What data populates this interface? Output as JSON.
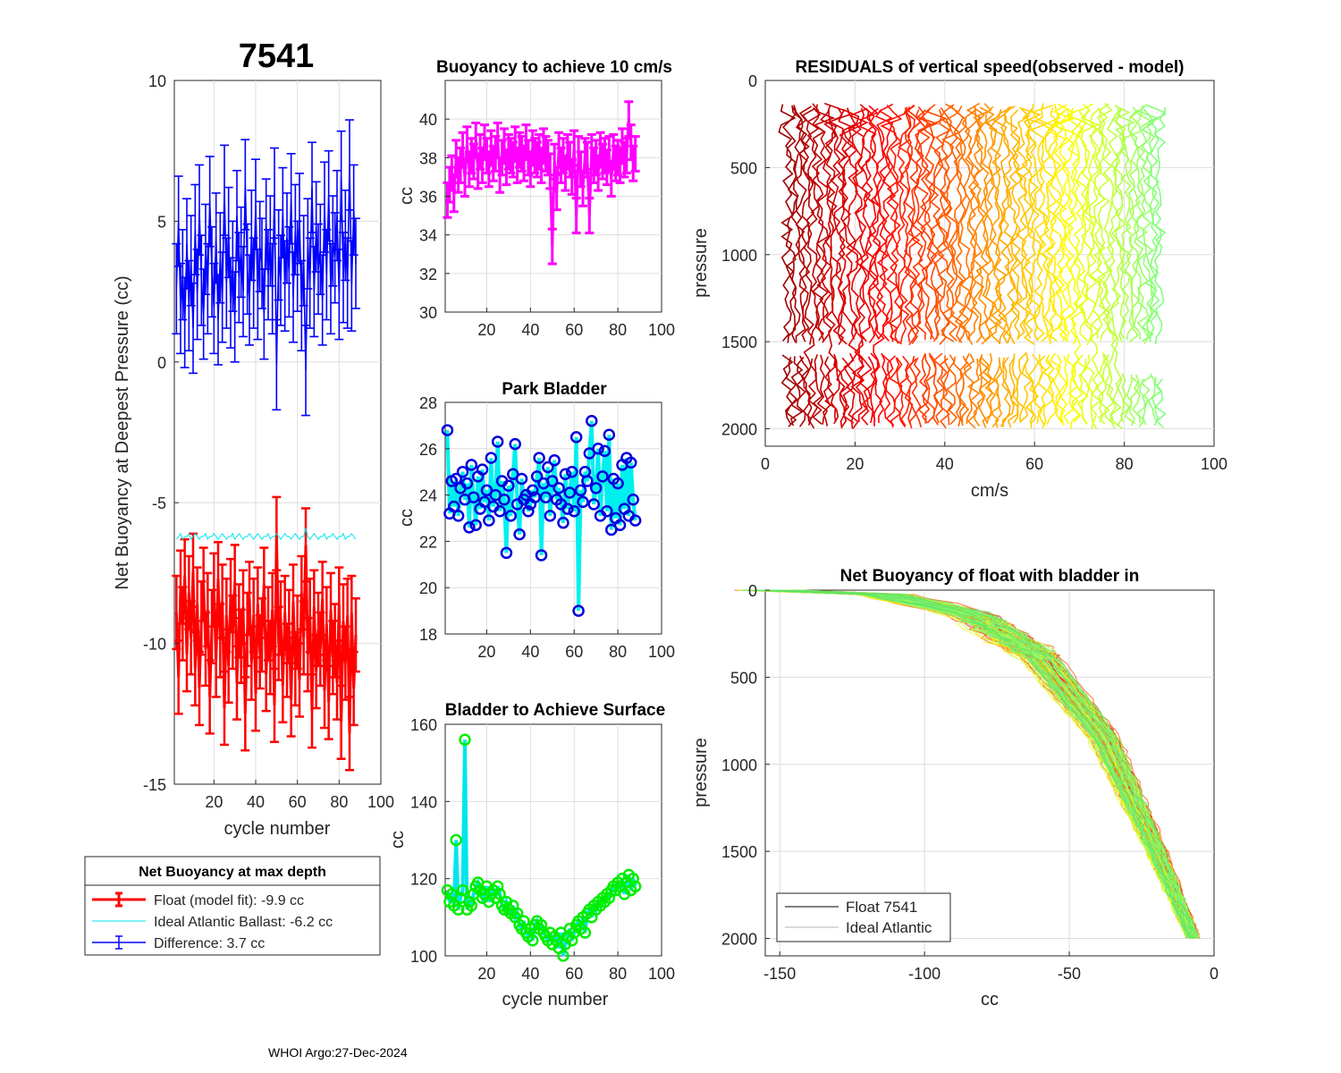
{
  "figure": {
    "main_title": "7541",
    "footer": "WHOI Argo:27-Dec-2024"
  },
  "colors": {
    "float": "#ff0000",
    "ideal": "#00e5ee",
    "difference": "#0000ff",
    "buoyancy10": "#ff00ff",
    "park_marker": "#0000dd",
    "park_line": "#00f0f0",
    "surface_marker": "#00ee00",
    "surface_line": "#00e5ee"
  },
  "legend": {
    "title": "Net Buoyancy at max depth",
    "entries": [
      {
        "label": "Float (model fit):  -9.9 cc",
        "color": "#ff0000"
      },
      {
        "label": "Ideal Atlantic Ballast:  -6.2 cc",
        "color": "#00e5ee"
      },
      {
        "label": "Difference:   3.7 cc",
        "color": "#0000ff"
      }
    ]
  },
  "legend2": {
    "entries": [
      {
        "label": "Float 7541",
        "color": "#000000"
      },
      {
        "label": "Ideal Atlantic",
        "color": "#b0b0b0"
      }
    ]
  },
  "chart_data": [
    {
      "id": "net-buoyancy",
      "type": "line",
      "title": "7541",
      "xlabel": "cycle number",
      "ylabel": "Net Buoyancy at Deepest Pressure (cc)",
      "xlim": [
        1,
        100
      ],
      "ylim": [
        -15,
        10
      ],
      "xticks": [
        20,
        40,
        60,
        80,
        100
      ],
      "yticks": [
        -15,
        -10,
        -5,
        0,
        5,
        10
      ],
      "x": [
        2,
        3,
        4,
        5,
        6,
        7,
        8,
        9,
        10,
        11,
        12,
        13,
        14,
        15,
        16,
        17,
        18,
        19,
        20,
        21,
        22,
        23,
        24,
        25,
        26,
        27,
        28,
        29,
        30,
        31,
        32,
        33,
        34,
        35,
        36,
        37,
        38,
        39,
        40,
        41,
        42,
        43,
        44,
        45,
        46,
        47,
        48,
        49,
        50,
        51,
        52,
        53,
        54,
        55,
        56,
        57,
        58,
        59,
        60,
        61,
        62,
        63,
        64,
        65,
        66,
        67,
        68,
        69,
        70,
        71,
        72,
        73,
        74,
        75,
        76,
        77,
        78,
        79,
        80,
        81,
        82,
        83,
        84,
        85,
        86,
        87,
        88
      ],
      "series": [
        {
          "name": "Float (model fit)",
          "color": "#ff0000",
          "values": [
            -8.9,
            -11.2,
            -8.0,
            -9.3,
            -7.6,
            -10.4,
            -8.2,
            -9.8,
            -7.4,
            -10.9,
            -8.6,
            -11.6,
            -9.1,
            -7.9,
            -10.2,
            -8.8,
            -11.9,
            -9.4,
            -8.1,
            -10.6,
            -7.7,
            -9.9,
            -8.5,
            -12.3,
            -9.0,
            -10.8,
            -8.3,
            -9.6,
            -7.8,
            -11.4,
            -9.2,
            -10.1,
            -8.7,
            -12.5,
            -9.5,
            -8.4,
            -10.7,
            -9.0,
            -11.8,
            -8.6,
            -10.3,
            -9.7,
            -7.9,
            -11.1,
            -9.3,
            -10.5,
            -8.8,
            -12.2,
            -6.1,
            -10.0,
            -9.1,
            -11.5,
            -8.9,
            -10.6,
            -9.4,
            -12.0,
            -8.5,
            -10.9,
            -9.6,
            -11.3,
            -8.2,
            -9.8,
            -6.5,
            -10.4,
            -9.0,
            -12.4,
            -8.7,
            -11.0,
            -9.5,
            -10.2,
            -8.4,
            -11.7,
            -9.3,
            -12.1,
            -8.8,
            -10.5,
            -9.9,
            -11.4,
            -8.6,
            -12.8,
            -9.2,
            -10.7,
            -9.0,
            -13.2,
            -8.9,
            -11.6,
            -9.7
          ],
          "errors": 1.3
        },
        {
          "name": "Ideal Atlantic Ballast",
          "color": "#00e5ee",
          "values": [
            -6.3,
            -6.2,
            -6.1,
            -6.3,
            -6.2,
            -6.2,
            -6.1,
            -6.3,
            -6.2,
            -6.1,
            -6.2,
            -6.3,
            -6.2,
            -6.2,
            -6.1,
            -6.3,
            -6.2,
            -6.2,
            -6.1,
            -6.2,
            -6.3,
            -6.2,
            -6.1,
            -6.2,
            -6.3,
            -6.2,
            -6.2,
            -6.1,
            -6.3,
            -6.2,
            -6.1,
            -6.2,
            -6.3,
            -6.2,
            -6.2,
            -6.1,
            -6.2,
            -6.3,
            -6.2,
            -6.1,
            -6.2,
            -6.3,
            -6.2,
            -6.2,
            -6.1,
            -6.3,
            -6.2,
            -6.2,
            -6.1,
            -6.2,
            -6.3,
            -6.2,
            -6.1,
            -6.2,
            -6.2,
            -6.3,
            -6.2,
            -6.1,
            -6.2,
            -6.3,
            -6.2,
            -6.2,
            -5.9,
            -6.2,
            -6.3,
            -6.2,
            -6.1,
            -6.2,
            -6.3,
            -6.2,
            -6.2,
            -6.1,
            -6.3,
            -6.2,
            -6.2,
            -6.1,
            -6.2,
            -6.3,
            -6.2,
            -6.2,
            -6.1,
            -6.3,
            -6.2,
            -6.2,
            -6.1,
            -6.2,
            -6.3
          ]
        },
        {
          "name": "Difference",
          "color": "#0000ff",
          "values": [
            2.6,
            5.0,
            1.9,
            3.1,
            1.4,
            4.2,
            2.0,
            3.6,
            1.2,
            4.7,
            2.4,
            5.4,
            2.9,
            1.7,
            4.0,
            2.6,
            5.7,
            3.2,
            1.9,
            4.4,
            1.5,
            3.7,
            2.3,
            6.1,
            2.8,
            4.6,
            2.1,
            3.4,
            1.6,
            5.2,
            3.0,
            3.9,
            2.5,
            6.3,
            3.3,
            2.2,
            4.5,
            2.8,
            5.6,
            2.4,
            4.1,
            3.5,
            1.7,
            4.9,
            3.1,
            4.3,
            2.6,
            6.0,
            -0.1,
            3.8,
            2.9,
            5.3,
            2.7,
            4.4,
            3.2,
            5.8,
            2.3,
            4.7,
            3.4,
            5.1,
            2.0,
            3.6,
            -0.3,
            4.2,
            2.8,
            6.2,
            2.5,
            4.8,
            3.3,
            4.0,
            2.2,
            5.5,
            3.1,
            5.9,
            2.6,
            4.3,
            3.7,
            5.2,
            2.4,
            6.6,
            3.0,
            4.5,
            2.8,
            7.0,
            2.7,
            5.4,
            3.5
          ],
          "errors": 1.6
        }
      ]
    },
    {
      "id": "buoyancy-10cms",
      "type": "line",
      "title": "Buoyancy to achieve 10 cm/s",
      "xlabel": "",
      "ylabel": "cc",
      "xlim": [
        1,
        100
      ],
      "ylim": [
        30,
        42
      ],
      "xticks": [
        20,
        40,
        60,
        80,
        100
      ],
      "yticks": [
        30,
        32,
        34,
        36,
        38,
        40
      ],
      "x": [
        2,
        3,
        4,
        5,
        6,
        7,
        8,
        9,
        10,
        11,
        12,
        13,
        14,
        15,
        16,
        17,
        18,
        19,
        20,
        21,
        22,
        23,
        24,
        25,
        26,
        27,
        28,
        29,
        30,
        31,
        32,
        33,
        34,
        35,
        36,
        37,
        38,
        39,
        40,
        41,
        42,
        43,
        44,
        45,
        46,
        47,
        48,
        49,
        50,
        51,
        52,
        53,
        54,
        55,
        56,
        57,
        58,
        59,
        60,
        61,
        62,
        63,
        64,
        65,
        66,
        67,
        68,
        69,
        70,
        71,
        72,
        73,
        74,
        75,
        76,
        77,
        78,
        79,
        80,
        81,
        82,
        83,
        84,
        85,
        86,
        87,
        88
      ],
      "series": [
        {
          "name": "Buoyancy",
          "color": "#ff00ff",
          "values": [
            35.8,
            36.6,
            37.2,
            36.1,
            38.0,
            37.1,
            37.6,
            38.4,
            36.9,
            38.7,
            37.4,
            38.1,
            37.8,
            38.9,
            37.3,
            38.3,
            37.6,
            38.8,
            38.1,
            37.4,
            38.5,
            37.7,
            38.2,
            38.9,
            37.1,
            38.0,
            38.6,
            37.5,
            38.3,
            38.1,
            37.9,
            38.7,
            37.6,
            38.4,
            38.2,
            37.7,
            38.8,
            38.0,
            37.4,
            38.5,
            38.1,
            37.9,
            38.3,
            37.6,
            38.6,
            38.2,
            38.0,
            37.3,
            33.4,
            37.8,
            36.2,
            38.4,
            37.6,
            38.1,
            37.2,
            38.3,
            37.9,
            37.0,
            38.5,
            35.0,
            38.2,
            37.4,
            36.4,
            38.1,
            37.9,
            35.0,
            38.3,
            37.6,
            38.0,
            37.2,
            38.4,
            37.8,
            38.1,
            37.5,
            38.2,
            36.9,
            38.3,
            37.7,
            38.0,
            37.6,
            38.6,
            37.9,
            38.1,
            40.0,
            38.8,
            37.7,
            38.2
          ],
          "errors": 0.9
        }
      ]
    },
    {
      "id": "park-bladder",
      "type": "line",
      "title": "Park Bladder",
      "xlabel": "",
      "ylabel": "cc",
      "xlim": [
        1,
        100
      ],
      "ylim": [
        18,
        28
      ],
      "xticks": [
        20,
        40,
        60,
        80,
        100
      ],
      "yticks": [
        18,
        20,
        22,
        24,
        26,
        28
      ],
      "x": [
        2,
        3,
        4,
        5,
        6,
        7,
        8,
        9,
        10,
        11,
        12,
        13,
        14,
        15,
        16,
        17,
        18,
        19,
        20,
        21,
        22,
        23,
        24,
        25,
        26,
        27,
        28,
        29,
        30,
        31,
        32,
        33,
        34,
        35,
        36,
        37,
        38,
        39,
        40,
        41,
        42,
        43,
        44,
        45,
        46,
        47,
        48,
        49,
        50,
        51,
        52,
        53,
        54,
        55,
        56,
        57,
        58,
        59,
        60,
        61,
        62,
        63,
        64,
        65,
        66,
        67,
        68,
        69,
        70,
        71,
        72,
        73,
        74,
        75,
        76,
        77,
        78,
        79,
        80,
        81,
        82,
        83,
        84,
        85,
        86,
        87,
        88
      ],
      "series": [
        {
          "name": "Park Bladder",
          "color": "#00f0f0",
          "values": [
            26.8,
            23.2,
            24.6,
            23.5,
            24.7,
            23.1,
            24.3,
            25.0,
            23.8,
            24.5,
            22.6,
            25.3,
            23.9,
            22.7,
            24.8,
            23.4,
            25.1,
            23.7,
            24.2,
            22.9,
            25.6,
            23.5,
            24.0,
            26.3,
            23.3,
            24.6,
            23.8,
            21.5,
            24.4,
            23.1,
            24.9,
            26.2,
            23.6,
            22.3,
            24.7,
            23.8,
            24.0,
            23.3,
            23.6,
            24.2,
            23.9,
            24.8,
            25.6,
            21.4,
            24.5,
            23.9,
            25.2,
            23.1,
            24.6,
            25.5,
            23.8,
            24.3,
            23.6,
            22.8,
            24.9,
            23.4,
            24.1,
            25.0,
            23.3,
            26.5,
            19.0,
            24.2,
            23.7,
            25.0,
            24.6,
            25.8,
            27.2,
            23.6,
            24.3,
            26.0,
            23.1,
            24.8,
            25.9,
            23.3,
            26.6,
            22.5,
            24.7,
            23.0,
            24.5,
            22.7,
            25.3,
            23.4,
            25.6,
            23.1,
            25.4,
            23.8,
            22.9
          ]
        }
      ]
    },
    {
      "id": "bladder-surface",
      "type": "line",
      "title": "Bladder to Achieve Surface",
      "xlabel": "cycle number",
      "ylabel": "cc",
      "xlim": [
        1,
        100
      ],
      "ylim": [
        100,
        160
      ],
      "xticks": [
        20,
        40,
        60,
        80,
        100
      ],
      "yticks": [
        100,
        120,
        140,
        160
      ],
      "x": [
        2,
        3,
        4,
        5,
        6,
        7,
        8,
        9,
        10,
        11,
        12,
        13,
        14,
        15,
        16,
        17,
        18,
        19,
        20,
        21,
        22,
        23,
        24,
        25,
        26,
        27,
        28,
        29,
        30,
        31,
        32,
        33,
        34,
        35,
        36,
        37,
        38,
        39,
        40,
        41,
        42,
        43,
        44,
        45,
        46,
        47,
        48,
        49,
        50,
        51,
        52,
        53,
        54,
        55,
        56,
        57,
        58,
        59,
        60,
        61,
        62,
        63,
        64,
        65,
        66,
        67,
        68,
        69,
        70,
        71,
        72,
        73,
        74,
        75,
        76,
        77,
        78,
        79,
        80,
        81,
        82,
        83,
        84,
        85,
        86,
        87,
        88
      ],
      "series": [
        {
          "name": "Bladder",
          "color": "#00e5ee",
          "values": [
            117,
            114,
            116,
            113,
            130,
            112,
            115,
            117,
            156,
            112,
            114,
            113,
            116,
            118,
            119,
            117,
            115,
            116,
            118,
            114,
            116,
            117,
            115,
            118,
            116,
            113,
            112,
            114,
            112,
            111,
            113,
            110,
            111,
            108,
            107,
            109,
            106,
            105,
            107,
            104,
            108,
            109,
            107,
            108,
            106,
            105,
            104,
            106,
            103,
            105,
            104,
            102,
            106,
            100,
            103,
            105,
            107,
            104,
            106,
            108,
            109,
            107,
            110,
            106,
            111,
            112,
            110,
            113,
            112,
            114,
            113,
            115,
            114,
            116,
            115,
            117,
            118,
            117,
            119,
            118,
            120,
            116,
            119,
            121,
            117,
            120,
            118
          ]
        }
      ]
    },
    {
      "id": "residuals",
      "type": "line",
      "title": "RESIDUALS of vertical speed(observed - model)",
      "xlabel": "cm/s",
      "ylabel": "pressure",
      "xlim": [
        0,
        100
      ],
      "ylim": [
        0,
        2100
      ],
      "y_reversed": true,
      "xticks": [
        0,
        20,
        40,
        60,
        80,
        100
      ],
      "yticks": [
        0,
        500,
        1000,
        1500,
        2000
      ],
      "profile_count": 87,
      "profile_offset_start": 5,
      "profile_offset_end": 88,
      "pressure_range": [
        130,
        2000
      ],
      "gap_pressure": 1540,
      "colormap": [
        "#a00000",
        "#ff0000",
        "#ff8000",
        "#ffff00",
        "#80ff80"
      ]
    },
    {
      "id": "net-buoyancy-bladder-in",
      "type": "line",
      "title": "Net Buoyancy of float with bladder in",
      "xlabel": "cc",
      "ylabel": "pressure",
      "xlim": [
        -155,
        0
      ],
      "ylim": [
        0,
        2100
      ],
      "y_reversed": true,
      "xticks": [
        -150,
        -100,
        -50,
        0
      ],
      "yticks": [
        0,
        500,
        1000,
        1500,
        2000
      ],
      "series": [
        {
          "name": "Float 7541",
          "color": "#000000",
          "profile": [
            [
              -155,
              0
            ],
            [
              -120,
              5
            ],
            [
              -85,
              150
            ],
            [
              -62,
              390
            ],
            [
              -40,
              850
            ],
            [
              -22,
              1500
            ],
            [
              -8,
              2000
            ]
          ]
        },
        {
          "name": "Ideal Atlantic",
          "color": "#b0b0b0",
          "profile": [
            [
              -153,
              0
            ],
            [
              -118,
              8
            ],
            [
              -83,
              140
            ],
            [
              -60,
              380
            ],
            [
              -38,
              840
            ],
            [
              -20,
              1490
            ],
            [
              -7,
              2000
            ]
          ]
        }
      ],
      "colormap": [
        "#ff0000",
        "#ff8000",
        "#ffff00",
        "#80ff80",
        "#60e060"
      ]
    }
  ]
}
